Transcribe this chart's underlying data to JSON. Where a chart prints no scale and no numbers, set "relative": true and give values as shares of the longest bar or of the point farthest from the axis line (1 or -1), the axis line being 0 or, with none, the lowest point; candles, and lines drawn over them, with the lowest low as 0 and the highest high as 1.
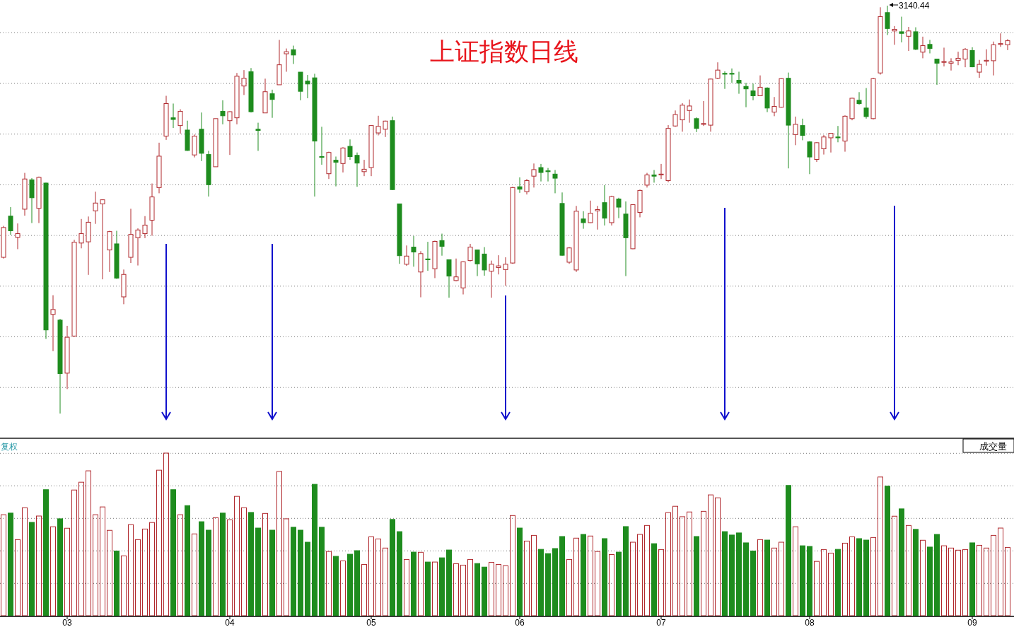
{
  "chart_data": [
    {
      "type": "candlestick",
      "title": "上证指数日线",
      "relative": true,
      "grid": "y",
      "annotations": [
        "3140.44"
      ],
      "categories": [
        null,
        null,
        null,
        null,
        null,
        null,
        null,
        null,
        null,
        null,
        null,
        null,
        null,
        null,
        null,
        null,
        null,
        null,
        null,
        null,
        null,
        null,
        null,
        null,
        null,
        null,
        null,
        null,
        null,
        null,
        null,
        null,
        null,
        null,
        null,
        null,
        null,
        null,
        null,
        null,
        null,
        null,
        null,
        null,
        null,
        null,
        null,
        null,
        null,
        null,
        null,
        null,
        null,
        null,
        null,
        null,
        null,
        null,
        null,
        null,
        null,
        null,
        null,
        null,
        null,
        null,
        null,
        null,
        null,
        null,
        null,
        null,
        null,
        null,
        null,
        null,
        null,
        null,
        null,
        null,
        null,
        null,
        null,
        null,
        null,
        null,
        null,
        null,
        null,
        null,
        null,
        null,
        null,
        null,
        null,
        null,
        null,
        null,
        null,
        null,
        null,
        null,
        null,
        null,
        null,
        null,
        null,
        null,
        null,
        null,
        null,
        null,
        null,
        null,
        null,
        null,
        null,
        null,
        null,
        null,
        null,
        null,
        null,
        null,
        null,
        null,
        null,
        null,
        null,
        null,
        null,
        null,
        null,
        null,
        null,
        null,
        null,
        null,
        null,
        null,
        null,
        null,
        null
      ],
      "ohlc": [
        [
          0.383,
          0.46,
          0.38,
          0.456
        ],
        [
          0.484,
          0.506,
          0.438,
          0.448
        ],
        [
          0.432,
          0.466,
          0.403,
          0.441
        ],
        [
          0.501,
          0.59,
          0.485,
          0.575
        ],
        [
          0.573,
          0.577,
          0.467,
          0.529
        ],
        [
          0.503,
          0.581,
          0.467,
          0.579
        ],
        [
          0.565,
          0.566,
          0.183,
          0.205
        ],
        [
          0.243,
          0.29,
          0.153,
          0.255
        ],
        [
          0.229,
          0.232,
          0,
          0.098
        ],
        [
          0.099,
          0.215,
          0.06,
          0.187
        ],
        [
          0.19,
          0.426,
          0.188,
          0.42
        ],
        [
          0.418,
          0.477,
          0.405,
          0.441
        ],
        [
          0.421,
          0.483,
          0.34,
          0.469
        ],
        [
          0.497,
          0.544,
          0.465,
          0.516
        ],
        [
          0.514,
          0.525,
          0.329,
          0.524
        ],
        [
          0.401,
          0.448,
          0.347,
          0.446
        ],
        [
          0.416,
          0.448,
          0.33,
          0.332
        ],
        [
          0.286,
          0.353,
          0.268,
          0.341
        ],
        [
          0.383,
          0.502,
          0.369,
          0.439
        ],
        [
          0.431,
          0.454,
          0.363,
          0.45
        ],
        [
          0.441,
          0.484,
          0.43,
          0.462
        ],
        [
          0.474,
          0.564,
          0.436,
          0.531
        ],
        [
          0.554,
          0.664,
          0.54,
          0.631
        ],
        [
          0.68,
          0.779,
          0.671,
          0.76
        ],
        [
          0.725,
          0.76,
          0.7,
          0.721
        ],
        [
          0.706,
          0.746,
          0.686,
          0.741
        ],
        [
          0.695,
          0.718,
          0.644,
          0.645
        ],
        [
          0.634,
          0.684,
          0.628,
          0.68
        ],
        [
          0.697,
          0.738,
          0.619,
          0.638
        ],
        [
          0.635,
          0.644,
          0.532,
          0.561
        ],
        [
          0.605,
          0.723,
          0.605,
          0.723
        ],
        [
          0.741,
          0.768,
          0.709,
          0.73
        ],
        [
          0.718,
          0.741,
          0.634,
          0.74
        ],
        [
          0.725,
          0.835,
          0.709,
          0.827
        ],
        [
          0.803,
          0.842,
          0.781,
          0.822
        ],
        [
          0.838,
          0.847,
          0.738,
          0.74
        ],
        [
          0.697,
          0.713,
          0.644,
          0.694
        ],
        [
          0.737,
          0.821,
          0.737,
          0.789
        ],
        [
          0.784,
          0.794,
          0.725,
          0.77
        ],
        [
          0.806,
          0.916,
          0.806,
          0.855
        ],
        [
          0.882,
          0.895,
          0.838,
          0.887
        ],
        [
          0.892,
          0.902,
          0.857,
          0.879
        ],
        [
          0.837,
          0.837,
          0.768,
          0.79
        ],
        [
          0.815,
          0.83,
          0.773,
          0.808
        ],
        [
          0.823,
          0.833,
          0.532,
          0.668
        ],
        [
          0.63,
          0.703,
          0.61,
          0.628
        ],
        [
          0.588,
          0.642,
          0.575,
          0.64
        ],
        [
          0.621,
          0.63,
          0.557,
          0.616
        ],
        [
          0.613,
          0.653,
          0.591,
          0.651
        ],
        [
          0.655,
          0.672,
          0.622,
          0.63
        ],
        [
          0.633,
          0.64,
          0.556,
          0.614
        ],
        [
          0.593,
          0.622,
          0.582,
          0.599
        ],
        [
          0.603,
          0.707,
          0.582,
          0.706
        ],
        [
          0.688,
          0.73,
          0.682,
          0.704
        ],
        [
          0.697,
          0.718,
          0.678,
          0.717
        ],
        [
          0.718,
          0.728,
          0.548,
          0.549
        ],
        [
          0.514,
          0.514,
          0.367,
          0.387
        ],
        [
          0.366,
          0.412,
          0.362,
          0.386
        ],
        [
          0.408,
          0.435,
          0.36,
          0.396
        ],
        [
          0.347,
          0.398,
          0.285,
          0.392
        ],
        [
          0.379,
          0.421,
          0.35,
          0.377
        ],
        [
          0.355,
          0.424,
          0.332,
          0.422
        ],
        [
          0.424,
          0.441,
          0.387,
          0.41
        ],
        [
          0.377,
          0.377,
          0.284,
          0.337
        ],
        [
          0.326,
          0.38,
          0.324,
          0.335
        ],
        [
          0.308,
          0.373,
          0.292,
          0.372
        ],
        [
          0.375,
          0.416,
          0.373,
          0.408
        ],
        [
          0.401,
          0.401,
          0.337,
          0.367
        ],
        [
          0.391,
          0.408,
          0.338,
          0.352
        ],
        [
          0.349,
          0.375,
          0.284,
          0.366
        ],
        [
          0.358,
          0.388,
          0.341,
          0.362
        ],
        [
          0.353,
          0.383,
          0.313,
          0.366
        ],
        [
          0.369,
          0.556,
          0.367,
          0.554
        ],
        [
          0.556,
          0.579,
          0.541,
          0.55
        ],
        [
          0.544,
          0.575,
          0.537,
          0.571
        ],
        [
          0.582,
          0.613,
          0.554,
          0.598
        ],
        [
          0.603,
          0.612,
          0.569,
          0.591
        ],
        [
          0.595,
          0.602,
          0.569,
          0.593
        ],
        [
          0.587,
          0.597,
          0.54,
          0.577
        ],
        [
          0.515,
          0.542,
          0.387,
          0.388
        ],
        [
          0.371,
          0.408,
          0.367,
          0.406
        ],
        [
          0.352,
          0.509,
          0.347,
          0.496
        ],
        [
          0.477,
          0.496,
          0.453,
          0.468
        ],
        [
          0.468,
          0.522,
          0.467,
          0.491
        ],
        [
          0.497,
          0.509,
          0.451,
          0.5
        ],
        [
          0.517,
          0.56,
          0.461,
          0.479
        ],
        [
          0.468,
          0.534,
          0.461,
          0.532
        ],
        [
          0.526,
          0.529,
          0.479,
          0.506
        ],
        [
          0.489,
          0.52,
          0.337,
          0.431
        ],
        [
          0.404,
          0.513,
          0.403,
          0.512
        ],
        [
          0.493,
          0.549,
          0.481,
          0.547
        ],
        [
          0.56,
          0.59,
          0.554,
          0.585
        ],
        [
          0.585,
          0.597,
          0.566,
          0.582
        ],
        [
          0.585,
          0.612,
          0.575,
          0.587
        ],
        [
          0.571,
          0.707,
          0.567,
          0.699
        ],
        [
          0.705,
          0.743,
          0.703,
          0.733
        ],
        [
          0.72,
          0.761,
          0.691,
          0.756
        ],
        [
          0.743,
          0.77,
          0.713,
          0.754
        ],
        [
          0.723,
          0.726,
          0.69,
          0.699
        ],
        [
          0.709,
          0.766,
          0.705,
          0.711
        ],
        [
          0.707,
          0.821,
          0.691,
          0.82
        ],
        [
          0.822,
          0.861,
          0.82,
          0.842
        ],
        [
          0.834,
          0.839,
          0.796,
          0.832
        ],
        [
          0.834,
          0.846,
          0.811,
          0.832
        ],
        [
          0.817,
          0.838,
          0.784,
          0.81
        ],
        [
          0.802,
          0.811,
          0.751,
          0.796
        ],
        [
          0.791,
          0.809,
          0.768,
          0.779
        ],
        [
          0.779,
          0.829,
          0.779,
          0.8
        ],
        [
          0.798,
          0.8,
          0.739,
          0.749
        ],
        [
          0.739,
          0.776,
          0.729,
          0.753
        ],
        [
          0.751,
          0.822,
          0.75,
          0.821
        ],
        [
          0.822,
          0.836,
          0.601,
          0.707
        ],
        [
          0.684,
          0.728,
          0.658,
          0.709
        ],
        [
          0.706,
          0.723,
          0.67,
          0.682
        ],
        [
          0.666,
          0.668,
          0.587,
          0.629
        ],
        [
          0.623,
          0.665,
          0.617,
          0.664
        ],
        [
          0.649,
          0.683,
          0.635,
          0.678
        ],
        [
          0.676,
          0.688,
          0.64,
          0.687
        ],
        [
          0.678,
          0.705,
          0.665,
          0.676
        ],
        [
          0.668,
          0.731,
          0.642,
          0.729
        ],
        [
          0.723,
          0.774,
          0.719,
          0.773
        ],
        [
          0.768,
          0.788,
          0.757,
          0.76
        ],
        [
          0.749,
          0.798,
          0.723,
          0.728
        ],
        [
          0.723,
          0.823,
          0.721,
          0.821
        ],
        [
          0.835,
          0.996,
          0.831,
          0.973
        ],
        [
          0.983,
          1,
          0.928,
          0.944
        ],
        [
          0.938,
          0.95,
          0.904,
          0.942
        ],
        [
          0.936,
          0.973,
          0.91,
          0.932
        ],
        [
          0.925,
          0.948,
          0.889,
          0.938
        ],
        [
          0.936,
          0.947,
          0.891,
          0.893
        ],
        [
          0.886,
          0.924,
          0.871,
          0.902
        ],
        [
          0.905,
          0.916,
          0.883,
          0.895
        ],
        [
          0.869,
          0.869,
          0.806,
          0.859
        ],
        [
          0.861,
          0.897,
          0.851,
          0.863
        ],
        [
          0.859,
          0.871,
          0.841,
          0.862
        ],
        [
          0.866,
          0.887,
          0.854,
          0.871
        ],
        [
          0.869,
          0.896,
          0.849,
          0.893
        ],
        [
          0.89,
          0.898,
          0.849,
          0.85
        ],
        [
          0.837,
          0.867,
          0.823,
          0.856
        ],
        [
          0.864,
          0.893,
          0.853,
          0.866
        ],
        [
          0.865,
          0.912,
          0.829,
          0.904
        ],
        [
          0.905,
          0.932,
          0.899,
          0.907
        ],
        [
          0.904,
          0.918,
          0.891,
          0.914
        ]
      ],
      "colors": [
        "#b0282d",
        "#1e8c1e",
        "#b0282d",
        "#b0282d",
        "#1e8c1e",
        "#b0282d",
        "#1e8c1e",
        "#b0282d",
        "#1e8c1e",
        "#b0282d",
        "#b0282d",
        "#b0282d",
        "#b0282d",
        "#b0282d",
        "#b0282d",
        "#b0282d",
        "#1e8c1e",
        "#b0282d",
        "#b0282d",
        "#b0282d",
        "#b0282d",
        "#b0282d",
        "#b0282d",
        "#b0282d",
        "#1e8c1e",
        "#b0282d",
        "#1e8c1e",
        "#b0282d",
        "#1e8c1e",
        "#1e8c1e",
        "#b0282d",
        "#1e8c1e",
        "#b0282d",
        "#b0282d",
        "#b0282d",
        "#1e8c1e",
        "#1e8c1e",
        "#b0282d",
        "#1e8c1e",
        "#b0282d",
        "#b0282d",
        "#1e8c1e",
        "#1e8c1e",
        "#1e8c1e",
        "#1e8c1e",
        "#1e8c1e",
        "#b0282d",
        "#1e8c1e",
        "#b0282d",
        "#1e8c1e",
        "#1e8c1e",
        "#b0282d",
        "#b0282d",
        "#b0282d",
        "#b0282d",
        "#1e8c1e",
        "#1e8c1e",
        "#b0282d",
        "#1e8c1e",
        "#b0282d",
        "#1e8c1e",
        "#b0282d",
        "#1e8c1e",
        "#1e8c1e",
        "#b0282d",
        "#b0282d",
        "#b0282d",
        "#1e8c1e",
        "#1e8c1e",
        "#b0282d",
        "#b0282d",
        "#b0282d",
        "#b0282d",
        "#1e8c1e",
        "#b0282d",
        "#b0282d",
        "#1e8c1e",
        "#1e8c1e",
        "#1e8c1e",
        "#1e8c1e",
        "#b0282d",
        "#b0282d",
        "#1e8c1e",
        "#b0282d",
        "#b0282d",
        "#1e8c1e",
        "#b0282d",
        "#1e8c1e",
        "#1e8c1e",
        "#b0282d",
        "#b0282d",
        "#b0282d",
        "#1e8c1e",
        "#b0282d",
        "#b0282d",
        "#b0282d",
        "#b0282d",
        "#b0282d",
        "#1e8c1e",
        "#b0282d",
        "#b0282d",
        "#b0282d",
        "#1e8c1e",
        "#1e8c1e",
        "#1e8c1e",
        "#1e8c1e",
        "#1e8c1e",
        "#b0282d",
        "#1e8c1e",
        "#b0282d",
        "#b0282d",
        "#1e8c1e",
        "#b0282d",
        "#1e8c1e",
        "#1e8c1e",
        "#b0282d",
        "#b0282d",
        "#b0282d",
        "#1e8c1e",
        "#b0282d",
        "#b0282d",
        "#1e8c1e",
        "#1e8c1e",
        "#b0282d",
        "#b0282d",
        "#1e8c1e",
        "#b0282d",
        "#1e8c1e",
        "#b0282d",
        "#1e8c1e",
        "#b0282d",
        "#1e8c1e",
        "#1e8c1e",
        "#b0282d",
        "#b0282d",
        "#b0282d",
        "#b0282d",
        "#1e8c1e",
        "#b0282d",
        "#b0282d",
        "#b0282d",
        "#b0282d",
        "#b0282d"
      ]
    },
    {
      "type": "bar",
      "title": "成交量",
      "relative": true,
      "grid": "y",
      "annotations": [
        "复权"
      ],
      "categories": [
        null,
        null,
        null,
        null,
        null,
        null,
        null,
        null,
        null,
        "03",
        null,
        null,
        null,
        null,
        null,
        null,
        null,
        null,
        null,
        null,
        null,
        null,
        null,
        null,
        null,
        null,
        null,
        null,
        null,
        null,
        null,
        null,
        "04",
        null,
        null,
        null,
        null,
        null,
        null,
        null,
        null,
        null,
        null,
        null,
        null,
        null,
        null,
        null,
        null,
        null,
        null,
        null,
        "05",
        null,
        null,
        null,
        null,
        null,
        null,
        null,
        null,
        null,
        null,
        null,
        null,
        null,
        null,
        null,
        null,
        null,
        null,
        null,
        null,
        "06",
        null,
        null,
        null,
        null,
        null,
        null,
        null,
        null,
        null,
        null,
        null,
        null,
        null,
        null,
        null,
        null,
        null,
        null,
        null,
        "07",
        null,
        null,
        null,
        null,
        null,
        null,
        null,
        null,
        null,
        null,
        null,
        null,
        null,
        null,
        null,
        null,
        null,
        null,
        null,
        null,
        "08",
        null,
        null,
        null,
        null,
        null,
        null,
        null,
        null,
        null,
        null,
        null,
        null,
        null,
        null,
        null,
        null,
        null,
        null,
        null,
        null,
        null,
        null,
        "09",
        null,
        null,
        null,
        null,
        null
      ],
      "values": [
        0.621,
        0.631,
        0.468,
        0.664,
        0.574,
        0.613,
        0.775,
        0.547,
        0.596,
        0.538,
        0.773,
        0.821,
        0.891,
        0.621,
        0.669,
        0.525,
        0.398,
        0.368,
        0.56,
        0.468,
        0.533,
        0.573,
        0.895,
        1,
        0.775,
        0.621,
        0.677,
        0.503,
        0.578,
        0.526,
        0.603,
        0.631,
        0.59,
        0.734,
        0.664,
        0.635,
        0.539,
        0.629,
        0.526,
        0.887,
        0.596,
        0.544,
        0.526,
        0.452,
        0.808,
        0.544,
        0.395,
        0.365,
        0.337,
        0.378,
        0.4,
        0.315,
        0.485,
        0.472,
        0.416,
        0.592,
        0.517,
        0.346,
        0.391,
        0.39,
        0.33,
        0.33,
        0.356,
        0.404,
        0.32,
        0.311,
        0.346,
        0.321,
        0.299,
        0.328,
        0.315,
        0.307,
        0.616,
        0.539,
        0.459,
        0.494,
        0.408,
        0.382,
        0.413,
        0.487,
        0.346,
        0.477,
        0.5,
        0.49,
        0.395,
        0.474,
        0.376,
        0.391,
        0.548,
        0.452,
        0.5,
        0.555,
        0.443,
        0.407,
        0.634,
        0.673,
        0.609,
        0.638,
        0.487,
        0.642,
        0.743,
        0.725,
        0.517,
        0.496,
        0.509,
        0.448,
        0.398,
        0.468,
        0.465,
        0.416,
        0.452,
        0.801,
        0.547,
        0.43,
        0.426,
        0.334,
        0.407,
        0.385,
        0.408,
        0.446,
        0.485,
        0.474,
        0.465,
        0.481,
        0.853,
        0.797,
        0.612,
        0.657,
        0.555,
        0.531,
        0.464,
        0.422,
        0.5,
        0.43,
        0.416,
        0.403,
        0.407,
        0.448,
        0.433,
        0.416,
        0.494,
        0.539,
        0.42
      ],
      "colors": [
        "#b0282d",
        "#1e8c1e",
        "#b0282d",
        "#b0282d",
        "#1e8c1e",
        "#b0282d",
        "#1e8c1e",
        "#b0282d",
        "#1e8c1e",
        "#b0282d",
        "#b0282d",
        "#b0282d",
        "#b0282d",
        "#b0282d",
        "#b0282d",
        "#b0282d",
        "#1e8c1e",
        "#b0282d",
        "#b0282d",
        "#b0282d",
        "#b0282d",
        "#b0282d",
        "#b0282d",
        "#b0282d",
        "#1e8c1e",
        "#b0282d",
        "#1e8c1e",
        "#b0282d",
        "#1e8c1e",
        "#1e8c1e",
        "#b0282d",
        "#1e8c1e",
        "#b0282d",
        "#b0282d",
        "#b0282d",
        "#1e8c1e",
        "#1e8c1e",
        "#b0282d",
        "#1e8c1e",
        "#b0282d",
        "#b0282d",
        "#1e8c1e",
        "#1e8c1e",
        "#1e8c1e",
        "#1e8c1e",
        "#1e8c1e",
        "#b0282d",
        "#1e8c1e",
        "#b0282d",
        "#1e8c1e",
        "#1e8c1e",
        "#b0282d",
        "#b0282d",
        "#b0282d",
        "#b0282d",
        "#1e8c1e",
        "#1e8c1e",
        "#b0282d",
        "#1e8c1e",
        "#b0282d",
        "#1e8c1e",
        "#b0282d",
        "#1e8c1e",
        "#1e8c1e",
        "#b0282d",
        "#b0282d",
        "#b0282d",
        "#1e8c1e",
        "#1e8c1e",
        "#b0282d",
        "#b0282d",
        "#b0282d",
        "#b0282d",
        "#1e8c1e",
        "#b0282d",
        "#b0282d",
        "#1e8c1e",
        "#1e8c1e",
        "#1e8c1e",
        "#1e8c1e",
        "#b0282d",
        "#b0282d",
        "#1e8c1e",
        "#b0282d",
        "#b0282d",
        "#1e8c1e",
        "#b0282d",
        "#1e8c1e",
        "#1e8c1e",
        "#b0282d",
        "#b0282d",
        "#b0282d",
        "#1e8c1e",
        "#b0282d",
        "#b0282d",
        "#b0282d",
        "#b0282d",
        "#b0282d",
        "#1e8c1e",
        "#b0282d",
        "#b0282d",
        "#b0282d",
        "#1e8c1e",
        "#1e8c1e",
        "#1e8c1e",
        "#1e8c1e",
        "#1e8c1e",
        "#b0282d",
        "#1e8c1e",
        "#b0282d",
        "#b0282d",
        "#1e8c1e",
        "#b0282d",
        "#1e8c1e",
        "#1e8c1e",
        "#b0282d",
        "#b0282d",
        "#b0282d",
        "#1e8c1e",
        "#b0282d",
        "#b0282d",
        "#1e8c1e",
        "#1e8c1e",
        "#b0282d",
        "#b0282d",
        "#1e8c1e",
        "#b0282d",
        "#1e8c1e",
        "#b0282d",
        "#1e8c1e",
        "#b0282d",
        "#1e8c1e",
        "#1e8c1e",
        "#b0282d",
        "#b0282d",
        "#b0282d",
        "#b0282d",
        "#1e8c1e",
        "#b0282d",
        "#b0282d",
        "#b0282d",
        "#b0282d",
        "#b0282d"
      ]
    }
  ]
}
